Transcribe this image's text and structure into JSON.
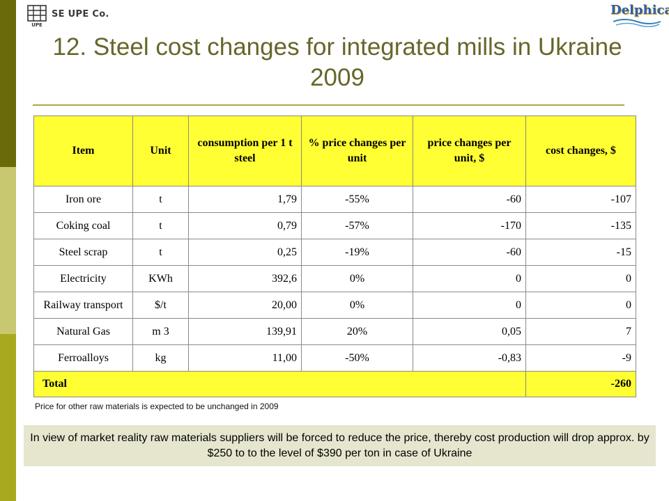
{
  "header": {
    "company": "SE UPE Co.",
    "logo_left_text": "UPE",
    "logo_right_text": "Delphica",
    "logo_left_icon": "building-logo-icon",
    "logo_right_icon": "delphica-wave-logo-icon"
  },
  "title": "12. Steel cost changes for integrated mills in Ukraine 2009",
  "table": {
    "headers": [
      "Item",
      "Unit",
      "consumption per 1 t steel",
      "% price changes per unit",
      "price changes per unit, $",
      "cost changes, $"
    ],
    "rows": [
      {
        "item": "Iron ore",
        "unit": "t",
        "consumption": "1,79",
        "pct": "-55%",
        "price": "-60",
        "cost": "-107"
      },
      {
        "item": "Coking coal",
        "unit": "t",
        "consumption": "0,79",
        "pct": "-57%",
        "price": "-170",
        "cost": "-135"
      },
      {
        "item": "Steel scrap",
        "unit": "t",
        "consumption": "0,25",
        "pct": "-19%",
        "price": "-60",
        "cost": "-15"
      },
      {
        "item": "Electricity",
        "unit": "KWh",
        "consumption": "392,6",
        "pct": "0%",
        "price": "0",
        "cost": "0"
      },
      {
        "item": "Railway transport",
        "unit": "$/t",
        "consumption": "20,00",
        "pct": "0%",
        "price": "0",
        "cost": "0"
      },
      {
        "item": "Natural Gas",
        "unit": "m 3",
        "consumption": "139,91",
        "pct": "20%",
        "price": "0,05",
        "cost": "7"
      },
      {
        "item": "Ferroalloys",
        "unit": "kg",
        "consumption": "11,00",
        "pct": "-50%",
        "price": "-0,83",
        "cost": "-9"
      }
    ],
    "total": {
      "label": "Total",
      "value": "-260"
    }
  },
  "note": "Price for other raw materials is expected to be unchanged in 2009",
  "conclusion": "In view of market reality raw materials suppliers will be forced to reduce the price, thereby cost production will drop approx. by $250 to to the level of $390 per ton in case of Ukraine",
  "colors": {
    "title": "#66662a",
    "table_header_bg": "#ffff33",
    "stripe_dark": "#6a6a08",
    "stripe_light": "#c8c870",
    "stripe_mid": "#a9a920",
    "box_bg": "#e6e6cf"
  }
}
